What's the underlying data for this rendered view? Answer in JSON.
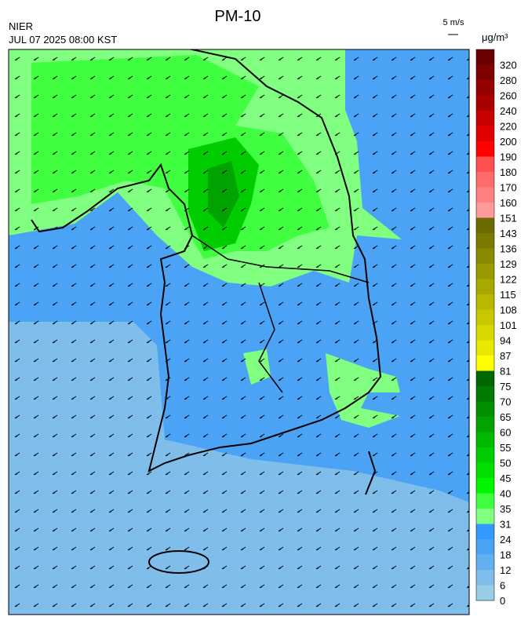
{
  "header": {
    "title": "PM-10",
    "agency": "NIER",
    "datetime": "JUL 07 2025 08:00 KST",
    "wind_scale": "5 m/s"
  },
  "colorbar": {
    "unit": "μg/m³",
    "labels": [
      "320",
      "280",
      "260",
      "240",
      "220",
      "200",
      "190",
      "180",
      "170",
      "160",
      "151",
      "143",
      "136",
      "129",
      "122",
      "115",
      "108",
      "101",
      "94",
      "87",
      "81",
      "75",
      "70",
      "65",
      "60",
      "55",
      "50",
      "45",
      "40",
      "35",
      "31",
      "24",
      "18",
      "12",
      "6",
      "0"
    ],
    "colors": [
      "#6b0000",
      "#800000",
      "#960000",
      "#ab0000",
      "#c80000",
      "#e00000",
      "#ff0000",
      "#ff5050",
      "#ff6a6a",
      "#ff8080",
      "#ff9a9a",
      "#6b6b00",
      "#7a7a00",
      "#8a8a00",
      "#999900",
      "#a8a800",
      "#b8b800",
      "#c8c800",
      "#d8d800",
      "#e8e800",
      "#ffff00",
      "#006600",
      "#007a00",
      "#008f00",
      "#00a300",
      "#00b800",
      "#00cc00",
      "#00e000",
      "#00f500",
      "#40ff40",
      "#80ff80",
      "#3399ff",
      "#4aa3f5",
      "#64aff0",
      "#7fbdeb",
      "#99cce6"
    ]
  }
}
